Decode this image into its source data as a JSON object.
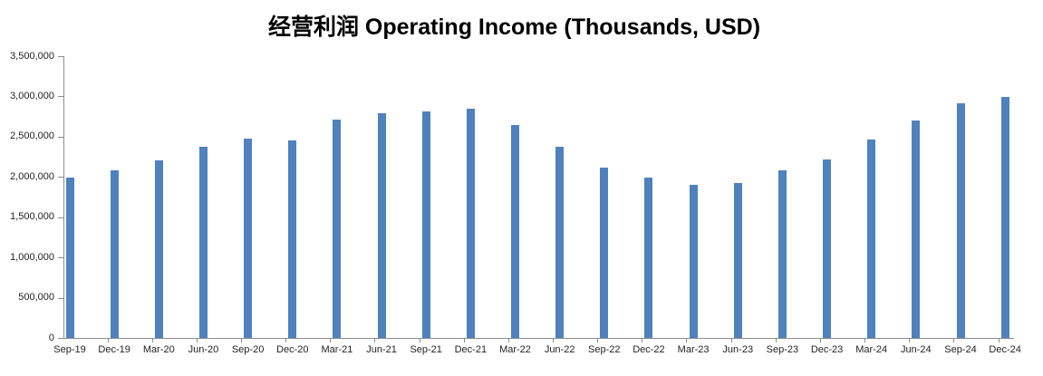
{
  "title": {
    "zh": "经营利润",
    "en": " Operating Income (Thousands, USD)"
  },
  "chart_data": {
    "type": "bar",
    "title": "经营利润 Operating Income (Thousands, USD)",
    "categories": [
      "Sep-19",
      "Dec-19",
      "Mar-20",
      "Jun-20",
      "Sep-20",
      "Dec-20",
      "Mar-21",
      "Jun-21",
      "Sep-21",
      "Dec-21",
      "Mar-22",
      "Jun-22",
      "Sep-22",
      "Dec-22",
      "Mar-23",
      "Jun-23",
      "Sep-23",
      "Dec-23",
      "Mar-24",
      "Jun-24",
      "Sep-24",
      "Dec-24"
    ],
    "values": [
      1990000,
      2080000,
      2210000,
      2370000,
      2480000,
      2450000,
      2710000,
      2790000,
      2810000,
      2850000,
      2650000,
      2380000,
      2120000,
      1990000,
      1900000,
      1930000,
      2080000,
      2220000,
      2470000,
      2700000,
      2910000,
      2990000
    ],
    "xlabel": "",
    "ylabel": "",
    "ylim": [
      0,
      3500000
    ],
    "ytick_step": 500000,
    "ytick_labels": [
      "0",
      "500,000",
      "1,000,000",
      "1,500,000",
      "2,000,000",
      "2,500,000",
      "3,000,000",
      "3,500,000"
    ],
    "grid": false,
    "legend": false,
    "bar_color": "#4f81bd"
  },
  "colors": {
    "bar": "#4f81bd",
    "axis_line": "#8c8c8c",
    "label_text": "#1f1f1f",
    "title_text": "#000000"
  }
}
